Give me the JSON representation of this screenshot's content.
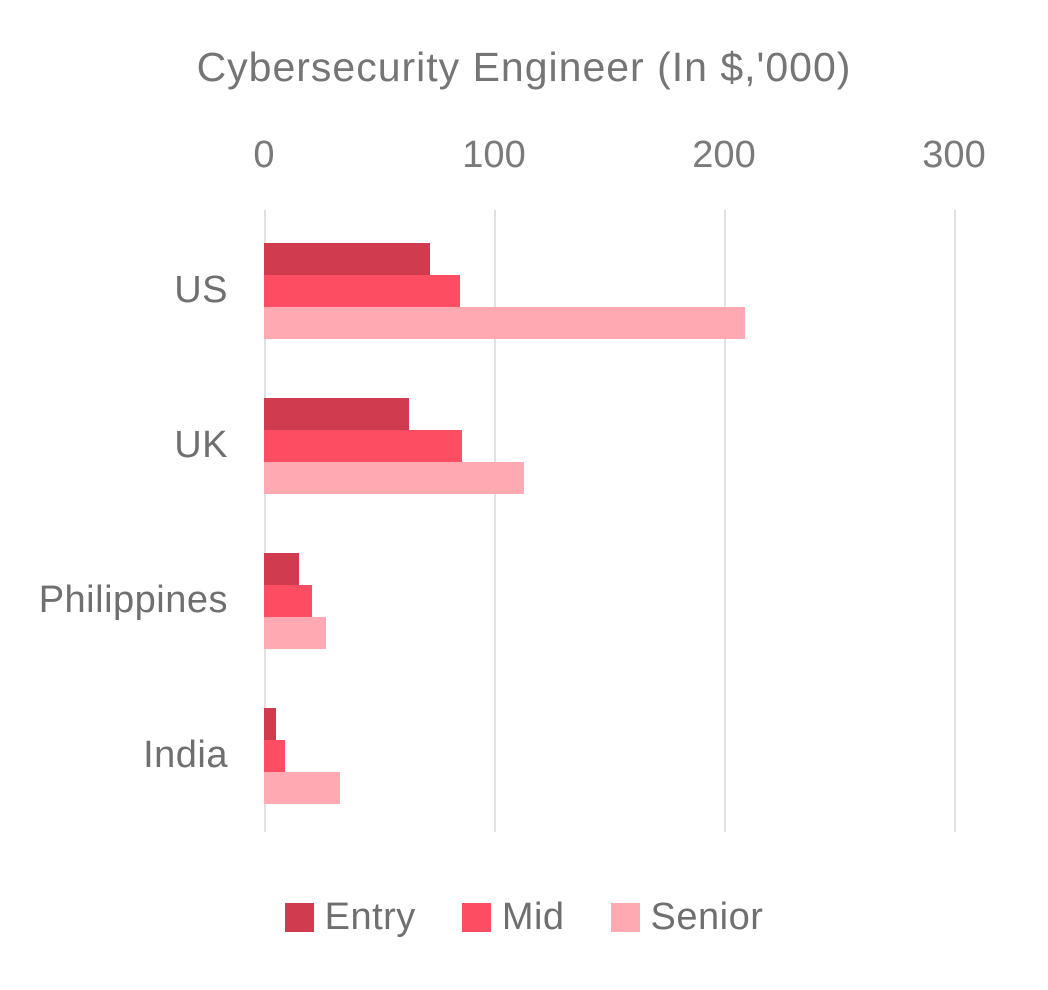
{
  "chart_data": {
    "type": "bar",
    "orientation": "horizontal",
    "title": "Cybersecurity Engineer (In $,'000)",
    "categories": [
      "US",
      "UK",
      "Philippines",
      "India"
    ],
    "series": [
      {
        "name": "Entry",
        "color": "#d03b50",
        "values": [
          72,
          63,
          15,
          5
        ]
      },
      {
        "name": "Mid",
        "color": "#fc4d62",
        "values": [
          85,
          86,
          21,
          9
        ]
      },
      {
        "name": "Senior",
        "color": "#ffa9b3",
        "values": [
          209,
          113,
          27,
          33
        ]
      }
    ],
    "x_axis": {
      "position": "top",
      "ticks": [
        0,
        100,
        200,
        300
      ],
      "min": 0,
      "max": 330
    },
    "grid": true,
    "legend_position": "bottom",
    "colors": {
      "text": "#6f6f6f",
      "title_text": "#757575",
      "gridline": "#e1e1e1",
      "background": "#ffffff"
    }
  }
}
